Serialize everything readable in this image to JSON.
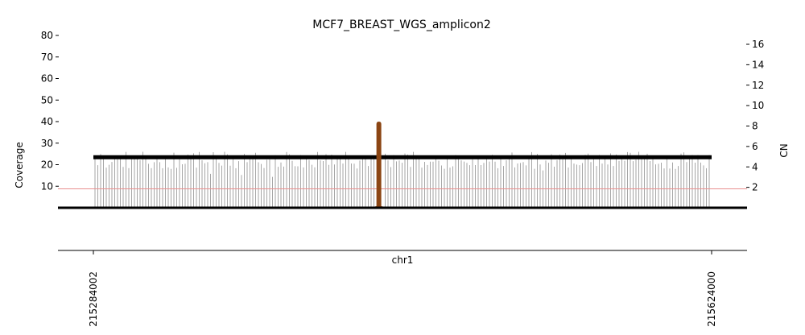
{
  "chart_data": {
    "type": "coverage",
    "title": "MCF7_BREAST_WGS_amplicon2",
    "xlabel": "chr1",
    "ylabel_left": "Coverage",
    "ylabel_right": "CN",
    "x_range": [
      215284002,
      215624000
    ],
    "x_ticks": [
      "215284002",
      "215624000"
    ],
    "ylim_left": [
      0,
      80
    ],
    "yticks_left": [
      10,
      20,
      30,
      40,
      50,
      60,
      70,
      80
    ],
    "ylim_right": [
      0,
      16.8
    ],
    "yticks_right": [
      2,
      4,
      6,
      8,
      10,
      12,
      14,
      16
    ],
    "cn_segment": {
      "cn": 4.95,
      "start": 215284002,
      "end": 215624000
    },
    "reference_line_cn": 1.85,
    "spike": {
      "center": 215441000,
      "width": 2500,
      "coverage": 40
    },
    "coverage_bars_mean": 22,
    "colors": {
      "coverage_bars": "#a6a6a6",
      "cn_segment": "#000000",
      "reference_line": "#e88f8f",
      "spike": "#8b4513"
    }
  }
}
